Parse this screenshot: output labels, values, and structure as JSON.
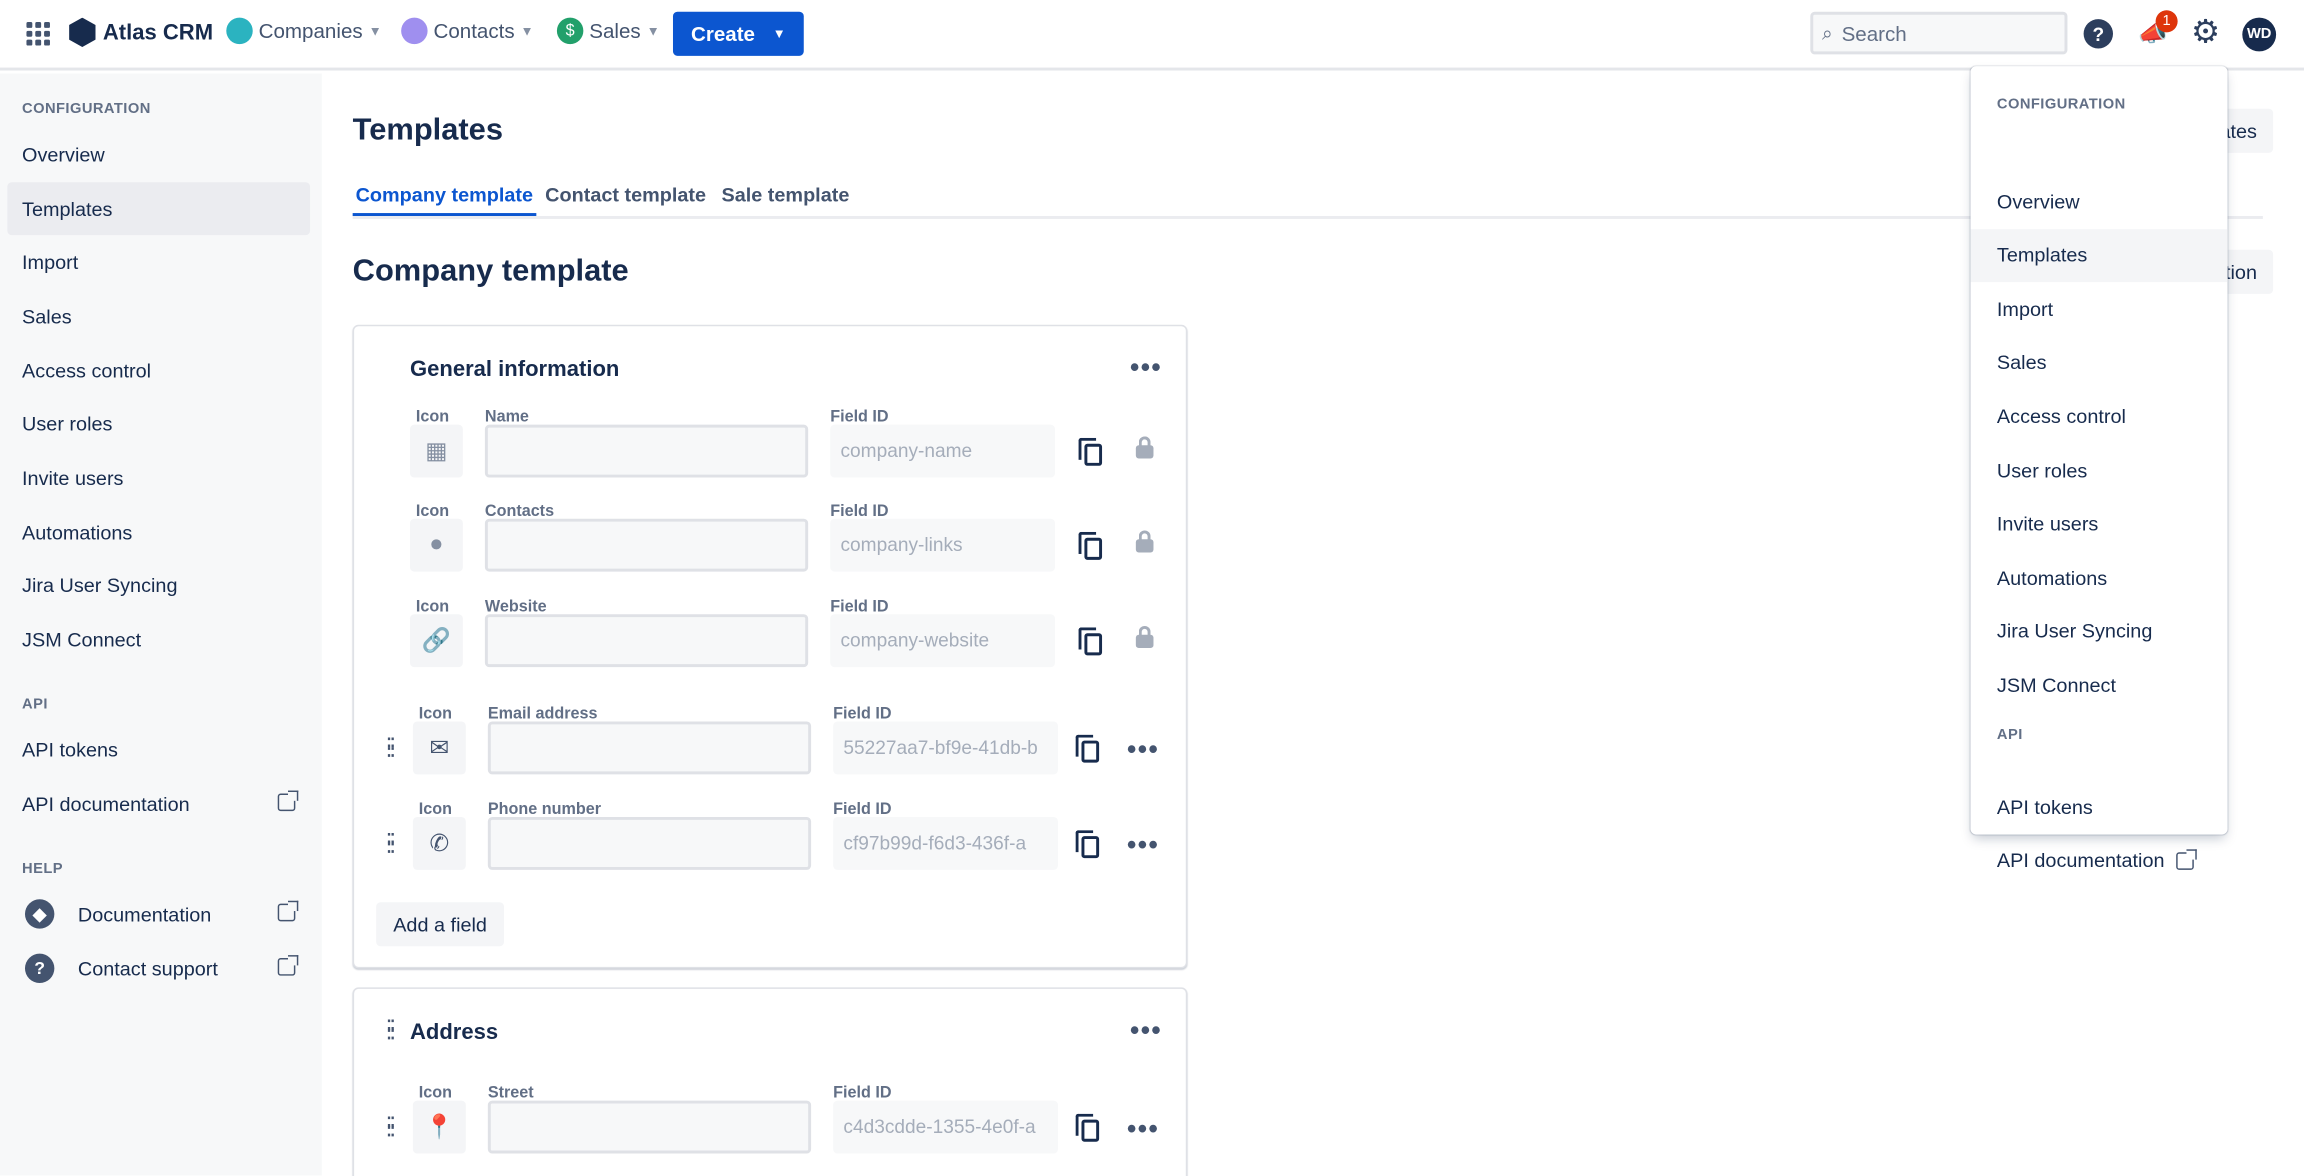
{
  "app": {
    "name": "Atlas CRM"
  },
  "topnav": {
    "items": [
      {
        "label": "Companies",
        "color": "#2bb3c0"
      },
      {
        "label": "Contacts",
        "color": "#9f8fef"
      },
      {
        "label": "Sales",
        "color": "#22a06b"
      }
    ],
    "create_label": "Create",
    "search_placeholder": "Search",
    "notification_count": "1",
    "avatar_initials": "WD"
  },
  "sidebar": {
    "sections": [
      {
        "title": "CONFIGURATION",
        "items": [
          {
            "label": "Overview"
          },
          {
            "label": "Templates",
            "active": true
          },
          {
            "label": "Import"
          },
          {
            "label": "Sales"
          },
          {
            "label": "Access control"
          },
          {
            "label": "User roles"
          },
          {
            "label": "Invite users"
          },
          {
            "label": "Automations"
          },
          {
            "label": "Jira User Syncing"
          },
          {
            "label": "JSM Connect"
          }
        ]
      },
      {
        "title": "API",
        "items": [
          {
            "label": "API tokens"
          },
          {
            "label": "API documentation",
            "external": true
          }
        ]
      },
      {
        "title": "HELP",
        "items": [
          {
            "label": "Documentation",
            "external": true,
            "icon": "book-icon"
          },
          {
            "label": "Contact support",
            "external": true,
            "icon": "question-icon"
          }
        ]
      }
    ]
  },
  "page": {
    "title": "Templates",
    "tabs": [
      {
        "label": "Company template",
        "active": true
      },
      {
        "label": "Contact template"
      },
      {
        "label": "Sale template"
      }
    ],
    "section_title": "Company template",
    "hidden_buttons": [
      "ates",
      "tion"
    ]
  },
  "cards": [
    {
      "title": "General information",
      "fields": [
        {
          "icon_label": "Icon",
          "name_label": "Name",
          "fieldid_label": "Field ID",
          "field_id": "company-name",
          "icon": "building-icon",
          "locked": true
        },
        {
          "icon_label": "Icon",
          "name_label": "Contacts",
          "fieldid_label": "Field ID",
          "field_id": "company-links",
          "icon": "person-icon",
          "locked": true
        },
        {
          "icon_label": "Icon",
          "name_label": "Website",
          "fieldid_label": "Field ID",
          "field_id": "company-website",
          "icon": "link-icon",
          "locked": true
        },
        {
          "icon_label": "Icon",
          "name_label": "Email address",
          "fieldid_label": "Field ID",
          "field_id": "55227aa7-bf9e-41db-b",
          "icon": "envelope-icon",
          "locked": false
        },
        {
          "icon_label": "Icon",
          "name_label": "Phone number",
          "fieldid_label": "Field ID",
          "field_id": "cf97b99d-f6d3-436f-a",
          "icon": "phone-icon",
          "locked": false
        }
      ],
      "add_label": "Add a field"
    },
    {
      "title": "Address",
      "fields": [
        {
          "icon_label": "Icon",
          "name_label": "Street",
          "fieldid_label": "Field ID",
          "field_id": "c4d3cdde-1355-4e0f-a",
          "icon": "map-pin-icon",
          "locked": false
        }
      ]
    }
  ],
  "dropdown": {
    "sections": [
      {
        "title": "CONFIGURATION",
        "items": [
          "Overview",
          "Templates",
          "Import",
          "Sales",
          "Access control",
          "User roles",
          "Invite users",
          "Automations",
          "Jira User Syncing",
          "JSM Connect"
        ]
      },
      {
        "title": "API",
        "items": [
          "API tokens",
          "API documentation"
        ]
      }
    ],
    "active": "Templates"
  }
}
